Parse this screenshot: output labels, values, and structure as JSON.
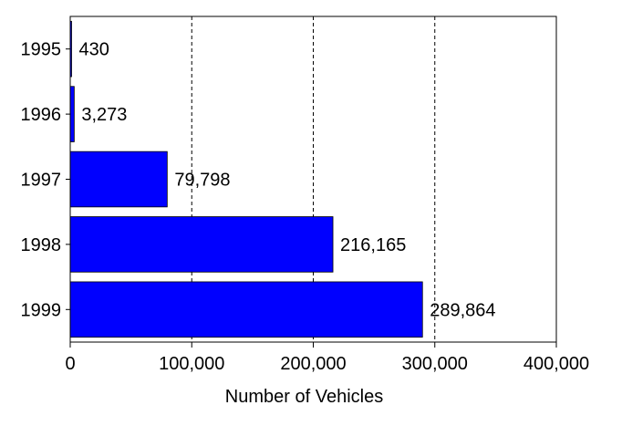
{
  "chart_data": {
    "type": "bar",
    "orientation": "horizontal",
    "categories": [
      "1995",
      "1996",
      "1997",
      "1998",
      "1999"
    ],
    "values": [
      430,
      3273,
      79798,
      216165,
      289864
    ],
    "data_labels": [
      "430",
      "3,273",
      "79,798",
      "216,165",
      "289,864"
    ],
    "title": "",
    "xlabel": "Number of Vehicles",
    "ylabel": "",
    "xlim": [
      0,
      400000
    ],
    "x_ticks": [
      0,
      100000,
      200000,
      300000,
      400000
    ],
    "x_tick_labels": [
      "0",
      "100,000",
      "200,000",
      "300,000",
      "400,000"
    ],
    "grid": "vertical dashed",
    "legend": "none",
    "colors": {
      "bar": "#0000FF",
      "axis": "#000000",
      "grid": "#000000"
    }
  }
}
